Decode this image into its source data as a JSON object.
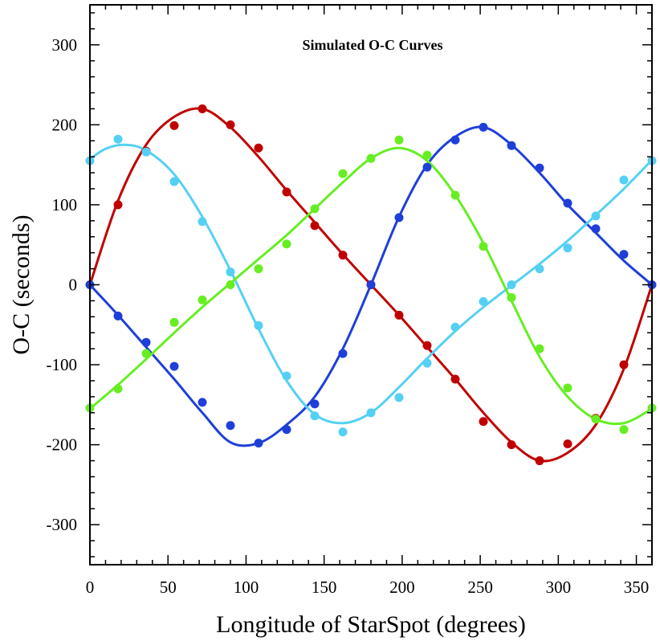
{
  "chart_data": {
    "type": "line",
    "title": "Simulated O-C Curves",
    "xlabel": "Longitude of StarSpot (degrees)",
    "ylabel": "O-C (seconds)",
    "xlim": [
      0,
      360
    ],
    "ylim": [
      -350,
      350
    ],
    "xticks": [
      0,
      50,
      100,
      150,
      200,
      250,
      300,
      350
    ],
    "yticks": [
      -300,
      -200,
      -100,
      0,
      100,
      200,
      300
    ],
    "xtick_labels": [
      "0",
      "50",
      "100",
      "150",
      "200",
      "250",
      "300",
      "350"
    ],
    "ytick_labels": [
      "-300",
      "-200",
      "-100",
      "0",
      "100",
      "200",
      "300"
    ],
    "grid": false,
    "series": [
      {
        "name": "red",
        "color": "#c00000",
        "curve_x": [
          0,
          18,
          36,
          54,
          72,
          90,
          108,
          126,
          144,
          162,
          180,
          198,
          216,
          234,
          252,
          270,
          288,
          306,
          324,
          342,
          360
        ],
        "curve_y": [
          0,
          105,
          175,
          210,
          220,
          197,
          160,
          118,
          78,
          38,
          0,
          -38,
          -78,
          -118,
          -160,
          -197,
          -220,
          -210,
          -175,
          -105,
          0
        ],
        "points_x": [
          18,
          36,
          54,
          72,
          90,
          108,
          126,
          144,
          162,
          180,
          198,
          216,
          234,
          252,
          270,
          288,
          306,
          324,
          342
        ],
        "points_y": [
          100,
          167,
          199,
          220,
          200,
          171,
          116,
          74,
          37,
          0,
          -38,
          -76,
          -118,
          -171,
          -200,
          -220,
          -199,
          -167,
          -100
        ]
      },
      {
        "name": "blue",
        "color": "#1f3fd8",
        "curve_x": [
          0,
          18,
          36,
          54,
          72,
          90,
          108,
          126,
          144,
          162,
          180,
          198,
          216,
          234,
          252,
          270,
          288,
          306,
          324,
          342,
          360
        ],
        "curve_y": [
          0,
          -38,
          -78,
          -118,
          -160,
          -197,
          -198,
          -175,
          -140,
          -80,
          0,
          85,
          150,
          185,
          197,
          175,
          140,
          100,
          65,
          30,
          0
        ],
        "points_x": [
          0,
          18,
          36,
          54,
          72,
          90,
          108,
          126,
          144,
          162,
          180,
          198,
          216,
          234,
          252,
          270,
          288,
          306,
          324,
          342,
          360
        ],
        "points_y": [
          0,
          -39,
          -72,
          -102,
          -147,
          -176,
          -198,
          -181,
          -149,
          -86,
          0,
          84,
          147,
          181,
          197,
          174,
          146,
          102,
          70,
          38,
          0
        ]
      },
      {
        "name": "cyan",
        "color": "#55d0f5",
        "curve_x": [
          0,
          10,
          22,
          36,
          54,
          72,
          90,
          108,
          126,
          144,
          162,
          180,
          198,
          216,
          234,
          252,
          270,
          288,
          306,
          324,
          342,
          360
        ],
        "curve_y": [
          157,
          170,
          175,
          168,
          138,
          85,
          18,
          -55,
          -120,
          -162,
          -173,
          -160,
          -128,
          -92,
          -58,
          -28,
          -1,
          26,
          55,
          87,
          120,
          156
        ],
        "points_x": [
          0,
          18,
          36,
          54,
          72,
          90,
          108,
          126,
          144,
          162,
          180,
          198,
          216,
          234,
          252,
          270,
          288,
          306,
          324,
          342,
          360
        ],
        "points_y": [
          155,
          182,
          166,
          129,
          79,
          16,
          -51,
          -114,
          -164,
          -184,
          -160,
          -141,
          -98,
          -53,
          -21,
          0,
          20,
          46,
          86,
          131,
          155
        ]
      },
      {
        "name": "green",
        "color": "#66ee22",
        "curve_x": [
          0,
          18,
          36,
          54,
          72,
          90,
          108,
          126,
          144,
          162,
          180,
          198,
          216,
          234,
          252,
          270,
          288,
          306,
          324,
          342,
          360
        ],
        "curve_y": [
          -155,
          -125,
          -93,
          -60,
          -28,
          2,
          32,
          62,
          95,
          128,
          158,
          171,
          155,
          112,
          52,
          -20,
          -90,
          -140,
          -168,
          -173,
          -155
        ],
        "points_x": [
          0,
          18,
          36,
          54,
          72,
          90,
          108,
          126,
          144,
          162,
          180,
          198,
          216,
          234,
          252,
          270,
          288,
          306,
          324,
          342,
          360
        ],
        "points_y": [
          -154,
          -130,
          -86,
          -47,
          -19,
          0,
          20,
          51,
          95,
          139,
          158,
          181,
          162,
          112,
          48,
          -16,
          -80,
          -129,
          -168,
          -181,
          -154
        ]
      }
    ]
  }
}
